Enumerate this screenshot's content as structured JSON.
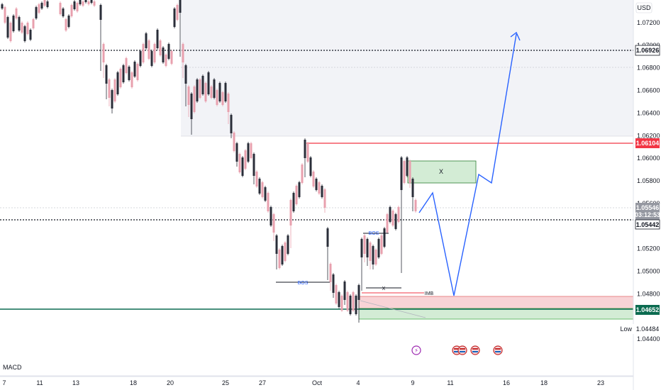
{
  "header": {
    "currency": "USD"
  },
  "price_axis": {
    "ticks": [
      "1.07200",
      "1.07000",
      "1.06800",
      "1.06600",
      "1.06400",
      "1.06200",
      "1.06000",
      "1.05800",
      "1.05600",
      "1.05200",
      "1.05000",
      "1.04800",
      "1.04400"
    ],
    "tick_values": [
      1.072,
      1.07,
      1.068,
      1.066,
      1.064,
      1.062,
      1.06,
      1.058,
      1.056,
      1.052,
      1.05,
      1.048,
      1.044
    ],
    "badges": {
      "level_high": "1.06926",
      "level_red": "1.06104",
      "current_price": "1.05546",
      "countdown": "03:12:53",
      "level_mid": "1.05442",
      "level_green": "1.04652",
      "low_label": "Low",
      "low_value": "1.04484"
    }
  },
  "time_axis": {
    "ticks": [
      "7",
      "11",
      "13",
      "18",
      "20",
      "25",
      "27",
      "Oct",
      "4",
      "9",
      "11",
      "16",
      "18",
      "23"
    ]
  },
  "indicator": {
    "label": "MACD"
  },
  "annotations": {
    "bos_1": "BOS",
    "bos_2": "BOS",
    "x_box": "X",
    "x_small": "X",
    "imb": "IMB"
  },
  "colors": {
    "bull": "#2a2e39",
    "bear": "#e8a0ae",
    "level_red": "#f23645",
    "level_green": "#0b6b50",
    "projection": "#2962ff",
    "zone_green": "#c8e6c9",
    "zone_red": "#f8c8cc",
    "zone_gray": "#f0f1f5"
  },
  "event_icons": [
    "lightning-icon",
    "us-flag-icon",
    "us-flag-icon",
    "us-flag-icon",
    "us-flag-icon"
  ]
}
